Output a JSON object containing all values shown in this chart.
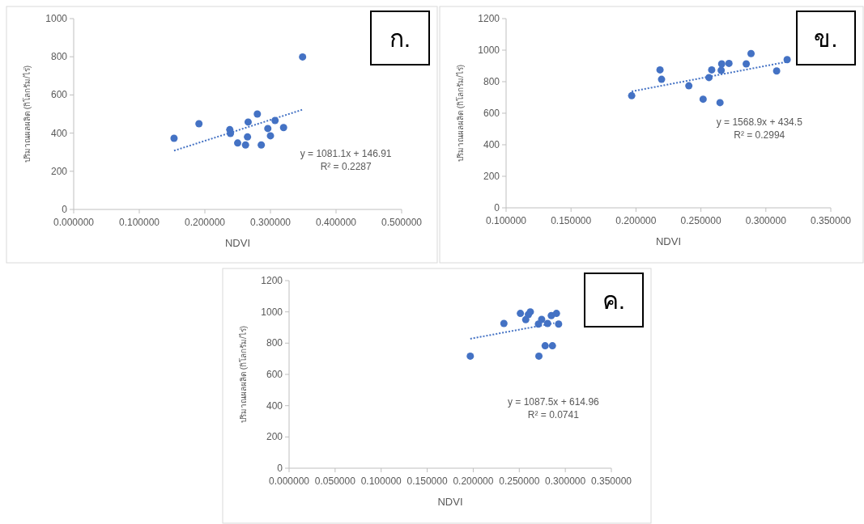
{
  "chart_data": [
    {
      "type": "scatter",
      "title": "ก.",
      "xlabel": "NDVI",
      "ylabel": "ปริมาณผลผลิต (กิโลกรัม/ไร่)",
      "annotations": [
        "y = 1081.1x + 146.91",
        "R² = 0.2287"
      ],
      "xlim": [
        0,
        0.5
      ],
      "ylim": [
        0,
        1000
      ],
      "xticks": [
        {
          "value": 0,
          "label": "0.000000"
        },
        {
          "value": 0.1,
          "label": "0.100000"
        },
        {
          "value": 0.2,
          "label": "0.200000"
        },
        {
          "value": 0.3,
          "label": "0.300000"
        },
        {
          "value": 0.4,
          "label": "0.400000"
        },
        {
          "value": 0.5,
          "label": "0.500000"
        }
      ],
      "yticks": [
        0,
        200,
        400,
        600,
        800,
        1000
      ],
      "series": [
        {
          "color": "#4472c4",
          "marker": "circle",
          "x": [
            0.153,
            0.191,
            0.238,
            0.239,
            0.25,
            0.262,
            0.265,
            0.266,
            0.28,
            0.286,
            0.296,
            0.3,
            0.307,
            0.32,
            0.349
          ],
          "values": [
            373,
            449,
            418,
            398,
            348,
            338,
            380,
            458,
            500,
            338,
            424,
            386,
            466,
            429,
            799
          ]
        },
        {
          "type": "line",
          "color": "#4472c4",
          "marker": "none",
          "line_style": "dotted",
          "x": [
            0.153,
            0.349
          ],
          "values": [
            308,
            523
          ]
        }
      ]
    },
    {
      "type": "scatter",
      "title": "ข.",
      "xlabel": "NDVI",
      "ylabel": "ปริมาณผลผลิต (กิโลกรัม/ไร่)",
      "annotations": [
        "y = 1568.9x + 434.5",
        "R² = 0.2994"
      ],
      "xlim": [
        0.1,
        0.35
      ],
      "ylim": [
        0,
        1200
      ],
      "xticks": [
        {
          "value": 0.1,
          "label": "0.100000"
        },
        {
          "value": 0.15,
          "label": "0.150000"
        },
        {
          "value": 0.2,
          "label": "0.200000"
        },
        {
          "value": 0.25,
          "label": "0.250000"
        },
        {
          "value": 0.3,
          "label": "0.300000"
        },
        {
          "value": 0.35,
          "label": "0.350000"
        }
      ],
      "yticks": [
        0,
        200,
        400,
        600,
        800,
        1000,
        1200
      ],
      "series": [
        {
          "color": "#4472c4",
          "marker": "circle",
          "x": [
            0.1967,
            0.2185,
            0.2197,
            0.2407,
            0.2517,
            0.2562,
            0.2583,
            0.2647,
            0.2656,
            0.266,
            0.2716,
            0.2849,
            0.2886,
            0.3083,
            0.3164
          ],
          "values": [
            711,
            875,
            815,
            774,
            689,
            826,
            875,
            667,
            872,
            913,
            916,
            913,
            978,
            868,
            940
          ]
        },
        {
          "type": "line",
          "color": "#4472c4",
          "marker": "none",
          "line_style": "dotted",
          "x": [
            0.1967,
            0.3164
          ],
          "values": [
            738,
            926
          ]
        }
      ]
    },
    {
      "type": "scatter",
      "title": "ค.",
      "xlabel": "NDVI",
      "ylabel": "ปริมาณผลผลิต (กิโลกรัม/ไร่)",
      "annotations": [
        "y = 1087.5x + 614.96",
        "R² = 0.0741"
      ],
      "xlim": [
        0,
        0.35
      ],
      "ylim": [
        0,
        1200
      ],
      "xticks": [
        {
          "value": 0,
          "label": "0.000000"
        },
        {
          "value": 0.05,
          "label": "0.050000"
        },
        {
          "value": 0.1,
          "label": "0.100000"
        },
        {
          "value": 0.15,
          "label": "0.150000"
        },
        {
          "value": 0.2,
          "label": "0.200000"
        },
        {
          "value": 0.25,
          "label": "0.250000"
        },
        {
          "value": 0.3,
          "label": "0.300000"
        },
        {
          "value": 0.35,
          "label": "0.350000"
        }
      ],
      "yticks": [
        0,
        200,
        400,
        600,
        800,
        1000,
        1200
      ],
      "series": [
        {
          "color": "#4472c4",
          "marker": "circle",
          "x": [
            0.1968,
            0.2333,
            0.2512,
            0.257,
            0.2599,
            0.262,
            0.2708,
            0.2713,
            0.2743,
            0.2781,
            0.2807,
            0.2848,
            0.286,
            0.2904,
            0.2927
          ],
          "values": [
            717,
            926,
            990,
            950,
            983,
            1000,
            922,
            717,
            952,
            783,
            926,
            976,
            783,
            990,
            922
          ]
        },
        {
          "type": "line",
          "color": "#4472c4",
          "marker": "none",
          "line_style": "dotted",
          "x": [
            0.1968,
            0.288
          ],
          "values": [
            828,
            928
          ]
        }
      ]
    }
  ]
}
